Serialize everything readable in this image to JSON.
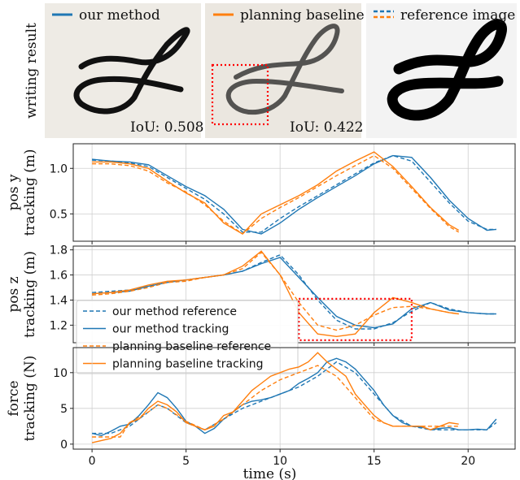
{
  "top_row": {
    "row_label": "writing result",
    "panels": [
      {
        "legend": "our method",
        "legend_color": "#1f77b4",
        "iou": "IoU: 0.508"
      },
      {
        "legend": "planning baseline",
        "legend_color": "#ff7f0e",
        "iou": "IoU: 0.422"
      },
      {
        "legend": "reference image",
        "legend_color": "#1f77b4",
        "legend_color2": "#ff7f0e",
        "iou": ""
      }
    ]
  },
  "colors": {
    "blue": "#1f77b4",
    "orange": "#ff7f0e",
    "highlight": "#ff0000"
  },
  "chart_data": [
    {
      "type": "line",
      "ylabel": "pos y\ntracking  (m)",
      "xlim": [
        -1,
        22.5
      ],
      "ylim": [
        0.2,
        1.27
      ],
      "yticks": [
        0.5,
        1.0
      ],
      "ytick_labels": [
        "0.5",
        "1.0"
      ],
      "grid": true,
      "series": [
        {
          "name": "our method reference",
          "color": "#1f77b4",
          "dash": true,
          "x": [
            0,
            1,
            2,
            3,
            4,
            5,
            6,
            7,
            8,
            9,
            10,
            11,
            12,
            13,
            14,
            15,
            16,
            17,
            18,
            19,
            20,
            21,
            21.5
          ],
          "y": [
            1.09,
            1.08,
            1.06,
            1.02,
            0.9,
            0.78,
            0.66,
            0.5,
            0.3,
            0.3,
            0.45,
            0.58,
            0.7,
            0.82,
            0.94,
            1.06,
            1.14,
            1.08,
            0.85,
            0.62,
            0.42,
            0.33,
            0.33
          ]
        },
        {
          "name": "our method tracking",
          "color": "#1f77b4",
          "dash": false,
          "x": [
            0,
            1,
            2,
            3,
            4,
            5,
            6,
            7,
            8,
            9,
            10,
            11,
            12,
            13,
            14,
            15,
            16,
            17,
            18,
            19,
            20,
            21,
            21.5
          ],
          "y": [
            1.1,
            1.08,
            1.07,
            1.04,
            0.92,
            0.8,
            0.7,
            0.55,
            0.33,
            0.28,
            0.4,
            0.55,
            0.68,
            0.8,
            0.92,
            1.05,
            1.14,
            1.12,
            0.9,
            0.65,
            0.45,
            0.32,
            0.33
          ]
        },
        {
          "name": "planning baseline reference",
          "color": "#ff7f0e",
          "dash": true,
          "x": [
            0,
            1,
            2,
            3,
            4,
            5,
            6,
            7,
            8,
            9,
            10,
            11,
            12,
            13,
            14,
            15,
            16,
            17,
            18,
            19,
            19.5
          ],
          "y": [
            1.05,
            1.05,
            1.03,
            0.97,
            0.84,
            0.74,
            0.6,
            0.42,
            0.28,
            0.45,
            0.57,
            0.68,
            0.8,
            0.92,
            1.03,
            1.14,
            1.0,
            0.78,
            0.56,
            0.36,
            0.3
          ]
        },
        {
          "name": "planning baseline tracking",
          "color": "#ff7f0e",
          "dash": false,
          "x": [
            0,
            1,
            2,
            3,
            4,
            5,
            6,
            7,
            8,
            9,
            10,
            11,
            12,
            13,
            14,
            15,
            16,
            17,
            18,
            19,
            19.5
          ],
          "y": [
            1.07,
            1.07,
            1.05,
            1.0,
            0.86,
            0.73,
            0.62,
            0.4,
            0.28,
            0.5,
            0.6,
            0.7,
            0.82,
            0.97,
            1.08,
            1.18,
            1.02,
            0.8,
            0.57,
            0.38,
            0.32
          ]
        }
      ]
    },
    {
      "type": "line",
      "ylabel": "pos z\ntracking (m)",
      "xlim": [
        -1,
        22.5
      ],
      "ylim": [
        1.06,
        1.83
      ],
      "yticks": [
        1.2,
        1.4,
        1.6,
        1.8
      ],
      "ytick_labels": [
        "1.2",
        "1.4",
        "1.6",
        "1.8"
      ],
      "grid": true,
      "legend": {
        "placement": "lower-left",
        "show": true
      },
      "highlight_box": {
        "x": [
          11,
          17
        ],
        "y": [
          1.08,
          1.41
        ]
      },
      "series": [
        {
          "name": "our method reference",
          "color": "#1f77b4",
          "dash": true,
          "x": [
            0,
            1,
            2,
            3,
            4,
            5,
            6,
            7,
            8,
            9,
            10,
            11,
            12,
            13,
            14,
            15,
            16,
            17,
            18,
            19,
            20,
            21,
            21.5
          ],
          "y": [
            1.46,
            1.47,
            1.48,
            1.51,
            1.54,
            1.56,
            1.58,
            1.6,
            1.63,
            1.7,
            1.76,
            1.6,
            1.4,
            1.24,
            1.17,
            1.17,
            1.22,
            1.31,
            1.38,
            1.33,
            1.3,
            1.29,
            1.29
          ]
        },
        {
          "name": "our method tracking",
          "color": "#1f77b4",
          "dash": false,
          "x": [
            0,
            1,
            2,
            3,
            4,
            5,
            6,
            7,
            8,
            9,
            10,
            11,
            12,
            13,
            14,
            15,
            16,
            17,
            18,
            19,
            20,
            21,
            21.5
          ],
          "y": [
            1.45,
            1.46,
            1.47,
            1.51,
            1.54,
            1.56,
            1.58,
            1.6,
            1.63,
            1.69,
            1.74,
            1.58,
            1.42,
            1.27,
            1.2,
            1.18,
            1.21,
            1.33,
            1.38,
            1.32,
            1.3,
            1.29,
            1.29
          ]
        },
        {
          "name": "planning baseline reference",
          "color": "#ff7f0e",
          "dash": true,
          "x": [
            0,
            1,
            2,
            3,
            4,
            5,
            6,
            7,
            8,
            9,
            10,
            11,
            12,
            13,
            14,
            15,
            16,
            17,
            18,
            19,
            19.5
          ],
          "y": [
            1.44,
            1.45,
            1.47,
            1.5,
            1.54,
            1.55,
            1.58,
            1.6,
            1.65,
            1.78,
            1.6,
            1.38,
            1.2,
            1.16,
            1.2,
            1.28,
            1.34,
            1.35,
            1.33,
            1.3,
            1.29
          ]
        },
        {
          "name": "planning baseline tracking",
          "color": "#ff7f0e",
          "dash": false,
          "x": [
            0,
            1,
            2,
            3,
            4,
            5,
            6,
            7,
            8,
            9,
            10,
            11,
            12,
            13,
            14,
            15,
            16,
            17,
            18,
            19,
            19.5
          ],
          "y": [
            1.45,
            1.46,
            1.48,
            1.52,
            1.55,
            1.56,
            1.58,
            1.6,
            1.67,
            1.79,
            1.6,
            1.3,
            1.13,
            1.11,
            1.13,
            1.3,
            1.42,
            1.38,
            1.33,
            1.3,
            1.29
          ]
        }
      ]
    },
    {
      "type": "line",
      "ylabel": "force\ntracking (N)",
      "xlabel": "time (s)",
      "xlim": [
        -1,
        22.5
      ],
      "ylim": [
        -0.7,
        13.5
      ],
      "xticks": [
        0,
        5,
        10,
        15,
        20
      ],
      "xtick_labels": [
        "0",
        "5",
        "10",
        "15",
        "20"
      ],
      "yticks": [
        0,
        5,
        10
      ],
      "ytick_labels": [
        "0",
        "5",
        "10"
      ],
      "grid": true,
      "series": [
        {
          "name": "our method reference",
          "color": "#1f77b4",
          "dash": true,
          "x": [
            0,
            1,
            2,
            3,
            3.5,
            4,
            5,
            6,
            7,
            8,
            9,
            10,
            11,
            12,
            13,
            14,
            15,
            16,
            17,
            18,
            19,
            20,
            21,
            21.5
          ],
          "y": [
            1.5,
            1.5,
            2.5,
            4.5,
            5.5,
            5.0,
            3.0,
            2.0,
            3.5,
            5.0,
            6.0,
            7.0,
            8.0,
            9.5,
            11.5,
            10.0,
            7.0,
            4.0,
            2.5,
            2.0,
            2.0,
            2.0,
            2.0,
            3.0
          ]
        },
        {
          "name": "our method tracking",
          "color": "#1f77b4",
          "dash": false,
          "x": [
            0,
            0.5,
            1,
            1.5,
            2,
            2.5,
            3,
            3.5,
            4,
            4.5,
            5,
            5.5,
            6,
            6.5,
            7,
            7.5,
            8,
            8.5,
            9,
            9.5,
            10,
            10.5,
            11,
            11.5,
            12,
            12.5,
            13,
            13.5,
            14,
            14.5,
            15,
            15.5,
            16,
            16.5,
            17,
            17.5,
            18,
            18.5,
            19,
            19.5,
            20,
            20.5,
            21,
            21.5
          ],
          "y": [
            1.5,
            1.2,
            1.8,
            2.5,
            2.8,
            4.0,
            5.5,
            7.2,
            6.5,
            5.0,
            3.2,
            2.5,
            1.5,
            2.2,
            3.5,
            4.5,
            5.5,
            6.0,
            6.2,
            6.5,
            7.0,
            7.5,
            8.5,
            9.2,
            10.0,
            11.5,
            12.0,
            11.5,
            10.5,
            9.0,
            7.5,
            5.5,
            4.0,
            3.0,
            2.5,
            2.4,
            2.0,
            2.2,
            2.3,
            2.0,
            2.0,
            2.1,
            2.0,
            3.5
          ]
        },
        {
          "name": "planning baseline reference",
          "color": "#ff7f0e",
          "dash": true,
          "x": [
            0,
            1,
            1.5,
            2,
            3,
            3.5,
            4,
            5,
            6,
            7,
            8,
            9,
            10,
            11,
            12,
            13,
            14,
            15,
            16,
            17,
            18,
            19,
            19.5
          ],
          "y": [
            1.0,
            1.0,
            1.0,
            3.0,
            4.5,
            5.5,
            5.0,
            3.2,
            2.0,
            3.5,
            5.5,
            7.5,
            9.0,
            10.0,
            11.0,
            9.5,
            6.5,
            3.5,
            2.5,
            2.5,
            2.5,
            2.5,
            2.5
          ]
        },
        {
          "name": "planning baseline tracking",
          "color": "#ff7f0e",
          "dash": false,
          "x": [
            0,
            0.5,
            1,
            1.5,
            2,
            2.5,
            3,
            3.5,
            4,
            4.5,
            5,
            5.5,
            6,
            6.5,
            7,
            7.5,
            8,
            8.5,
            9,
            9.5,
            10,
            10.5,
            11,
            11.5,
            12,
            12.5,
            13,
            13.5,
            14,
            14.5,
            15,
            15.5,
            16,
            16.5,
            17,
            17.5,
            18,
            18.5,
            19,
            19.5
          ],
          "y": [
            0.2,
            0.5,
            0.8,
            1.5,
            3.0,
            3.5,
            5.0,
            6.0,
            5.5,
            4.5,
            3.0,
            2.5,
            2.0,
            2.5,
            4.0,
            4.5,
            6.0,
            7.5,
            8.5,
            9.5,
            10.0,
            10.5,
            10.8,
            11.5,
            12.8,
            11.5,
            10.5,
            9.5,
            7.0,
            5.5,
            4.0,
            3.0,
            2.5,
            2.5,
            2.5,
            2.5,
            2.0,
            2.5,
            3.0,
            2.8
          ]
        }
      ]
    }
  ]
}
